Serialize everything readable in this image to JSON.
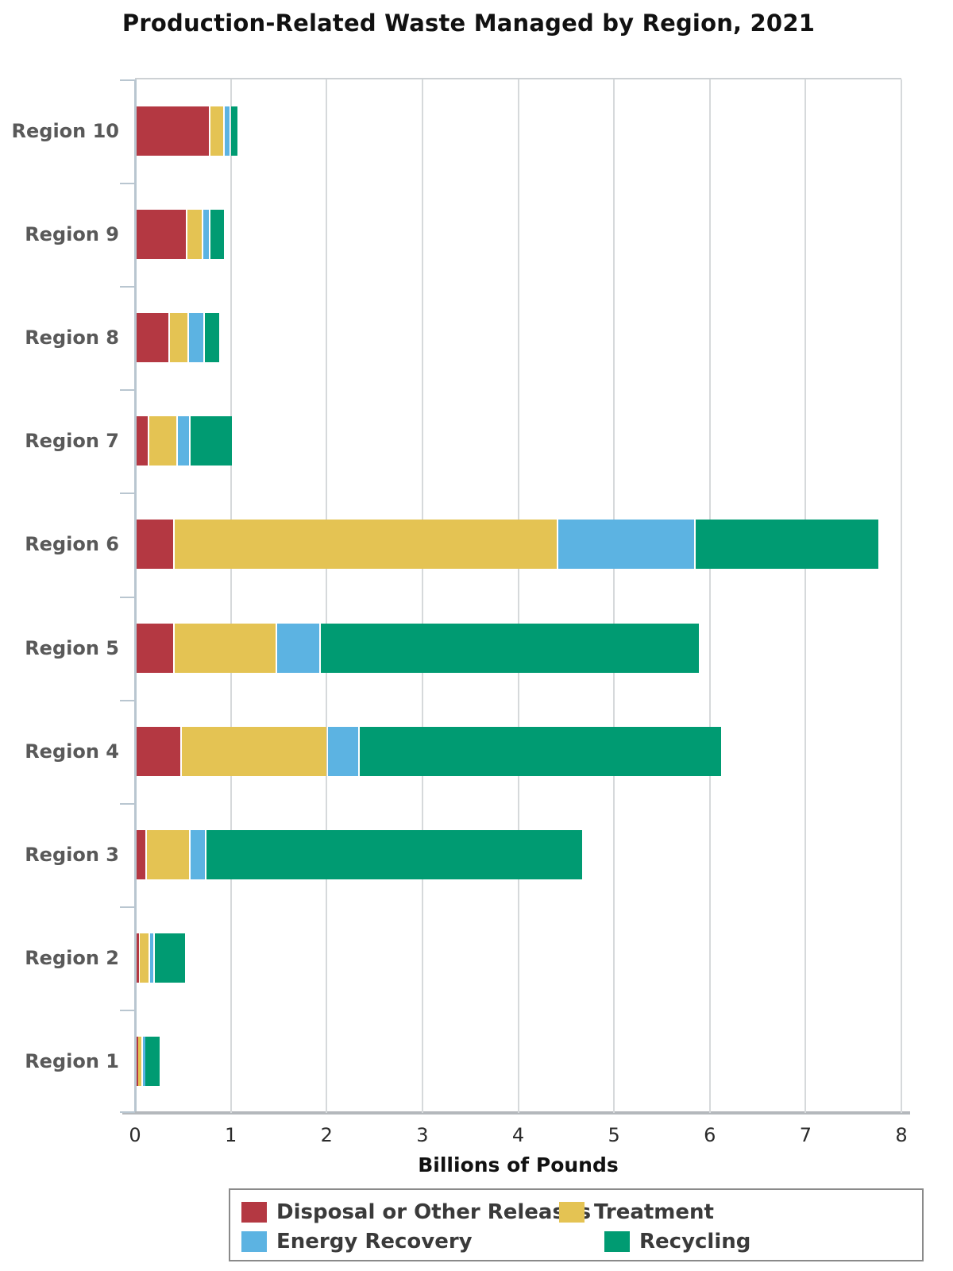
{
  "title": "Production-Related Waste Managed by Region, 2021",
  "chart_data": {
    "type": "bar",
    "orientation": "horizontal",
    "stacked": true,
    "title": "Production-Related Waste Managed by Region, 2021",
    "xlabel": "Billions of Pounds",
    "ylabel": "",
    "xlim": [
      0,
      8
    ],
    "xticks": [
      "0",
      "1",
      "2",
      "3",
      "4",
      "5",
      "6",
      "7",
      "8"
    ],
    "grid": true,
    "legend_position": "bottom",
    "category_order": "top-to-bottom",
    "categories": [
      "Region 10",
      "Region 9",
      "Region 8",
      "Region 7",
      "Region 6",
      "Region 5",
      "Region 4",
      "Region 3",
      "Region 2",
      "Region 1"
    ],
    "series": [
      {
        "name": "Disposal or Other Releases",
        "color": "#b43842",
        "values": [
          0.77,
          0.53,
          0.35,
          0.13,
          0.4,
          0.4,
          0.47,
          0.11,
          0.03,
          0.02
        ]
      },
      {
        "name": "Treatment",
        "color": "#e4c353",
        "values": [
          0.15,
          0.17,
          0.2,
          0.3,
          4.0,
          1.07,
          1.53,
          0.45,
          0.11,
          0.05
        ]
      },
      {
        "name": "Energy Recovery",
        "color": "#5cb3e2",
        "values": [
          0.07,
          0.07,
          0.16,
          0.13,
          1.44,
          0.45,
          0.33,
          0.17,
          0.05,
          0.02
        ]
      },
      {
        "name": "Recycling",
        "color": "#009b72",
        "values": [
          0.08,
          0.16,
          0.17,
          0.45,
          1.92,
          3.97,
          3.79,
          3.94,
          0.33,
          0.17
        ]
      }
    ],
    "totals": [
      1.07,
      0.93,
      0.88,
      1.01,
      7.76,
      5.89,
      6.12,
      4.67,
      0.52,
      0.26
    ]
  },
  "colors": {
    "grid": "#d6d9db",
    "y_axis": "#b9c6d0",
    "x_axis": "#b4b8bc",
    "category_label": "#595959",
    "tick_label": "#2b2b2b"
  }
}
